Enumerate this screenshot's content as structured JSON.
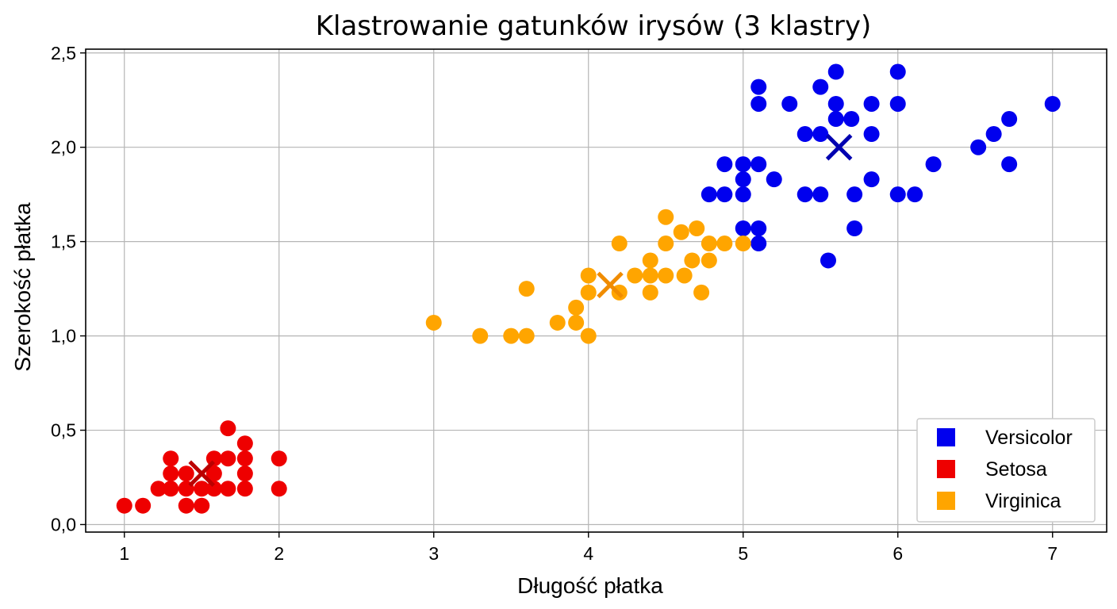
{
  "chart_data": {
    "type": "scatter",
    "title": "Klastrowanie gatunków irysów (3 klastry)",
    "xlabel": "Długość płatka",
    "ylabel": "Szerokość płatka",
    "xlim": [
      0.75,
      7.35
    ],
    "ylim": [
      -0.04,
      2.52
    ],
    "x_ticks": [
      1,
      2,
      3,
      4,
      5,
      6,
      7
    ],
    "x_tick_labels": [
      "1",
      "2",
      "3",
      "4",
      "5",
      "6",
      "7"
    ],
    "y_ticks": [
      0.0,
      0.5,
      1.0,
      1.5,
      2.0,
      2.5
    ],
    "y_tick_labels": [
      "0,0",
      "0,5",
      "1,0",
      "1,5",
      "2,0",
      "2,5"
    ],
    "grid": true,
    "legend_position": "bottom-right",
    "series": [
      {
        "name": "Versicolor",
        "color": "#0000ee",
        "points": [
          [
            5.6,
            2.4
          ],
          [
            6.0,
            2.4
          ],
          [
            5.1,
            2.32
          ],
          [
            5.5,
            2.32
          ],
          [
            5.1,
            2.23
          ],
          [
            5.3,
            2.23
          ],
          [
            5.6,
            2.23
          ],
          [
            5.83,
            2.23
          ],
          [
            6.0,
            2.23
          ],
          [
            7.0,
            2.23
          ],
          [
            5.6,
            2.15
          ],
          [
            5.7,
            2.15
          ],
          [
            6.72,
            2.15
          ],
          [
            5.4,
            2.07
          ],
          [
            5.5,
            2.07
          ],
          [
            5.83,
            2.07
          ],
          [
            6.62,
            2.07
          ],
          [
            6.52,
            2.0
          ],
          [
            4.88,
            1.91
          ],
          [
            5.0,
            1.91
          ],
          [
            5.1,
            1.91
          ],
          [
            6.23,
            1.91
          ],
          [
            6.72,
            1.91
          ],
          [
            5.0,
            1.83
          ],
          [
            5.2,
            1.83
          ],
          [
            5.83,
            1.83
          ],
          [
            4.78,
            1.75
          ],
          [
            4.88,
            1.75
          ],
          [
            5.0,
            1.75
          ],
          [
            5.4,
            1.75
          ],
          [
            5.5,
            1.75
          ],
          [
            5.72,
            1.75
          ],
          [
            6.0,
            1.75
          ],
          [
            6.11,
            1.75
          ],
          [
            5.0,
            1.57
          ],
          [
            5.1,
            1.57
          ],
          [
            5.72,
            1.57
          ],
          [
            5.1,
            1.49
          ],
          [
            5.55,
            1.4
          ]
        ]
      },
      {
        "name": "Setosa",
        "color": "#ee0000",
        "points": [
          [
            1.67,
            0.51
          ],
          [
            1.78,
            0.43
          ],
          [
            1.3,
            0.35
          ],
          [
            1.58,
            0.35
          ],
          [
            1.67,
            0.35
          ],
          [
            1.78,
            0.35
          ],
          [
            2.0,
            0.35
          ],
          [
            1.3,
            0.27
          ],
          [
            1.4,
            0.27
          ],
          [
            1.58,
            0.27
          ],
          [
            1.78,
            0.27
          ],
          [
            1.22,
            0.19
          ],
          [
            1.3,
            0.19
          ],
          [
            1.4,
            0.19
          ],
          [
            1.5,
            0.19
          ],
          [
            1.58,
            0.19
          ],
          [
            1.67,
            0.19
          ],
          [
            1.78,
            0.19
          ],
          [
            2.0,
            0.19
          ],
          [
            1.0,
            0.1
          ],
          [
            1.12,
            0.1
          ],
          [
            1.4,
            0.1
          ],
          [
            1.5,
            0.1
          ]
        ]
      },
      {
        "name": "Virginica",
        "color": "#ffa500",
        "points": [
          [
            4.5,
            1.63
          ],
          [
            4.7,
            1.57
          ],
          [
            4.6,
            1.55
          ],
          [
            4.2,
            1.49
          ],
          [
            4.5,
            1.49
          ],
          [
            4.78,
            1.49
          ],
          [
            4.88,
            1.49
          ],
          [
            5.0,
            1.49
          ],
          [
            4.4,
            1.4
          ],
          [
            4.67,
            1.4
          ],
          [
            4.78,
            1.4
          ],
          [
            4.0,
            1.32
          ],
          [
            4.3,
            1.32
          ],
          [
            4.4,
            1.32
          ],
          [
            4.5,
            1.32
          ],
          [
            4.62,
            1.32
          ],
          [
            3.6,
            1.25
          ],
          [
            4.0,
            1.23
          ],
          [
            4.2,
            1.23
          ],
          [
            4.4,
            1.23
          ],
          [
            4.73,
            1.23
          ],
          [
            3.92,
            1.15
          ],
          [
            3.8,
            1.07
          ],
          [
            3.92,
            1.07
          ],
          [
            3.0,
            1.07
          ],
          [
            3.3,
            1.0
          ],
          [
            3.5,
            1.0
          ],
          [
            3.6,
            1.0
          ],
          [
            4.0,
            1.0
          ]
        ]
      }
    ],
    "centroids": [
      {
        "cluster": "Versicolor",
        "x": 5.62,
        "y": 2.0
      },
      {
        "cluster": "Setosa",
        "x": 1.5,
        "y": 0.27
      },
      {
        "cluster": "Virginica",
        "x": 4.14,
        "y": 1.27
      }
    ],
    "legend_order": [
      "Versicolor",
      "Setosa",
      "Virginica"
    ]
  }
}
